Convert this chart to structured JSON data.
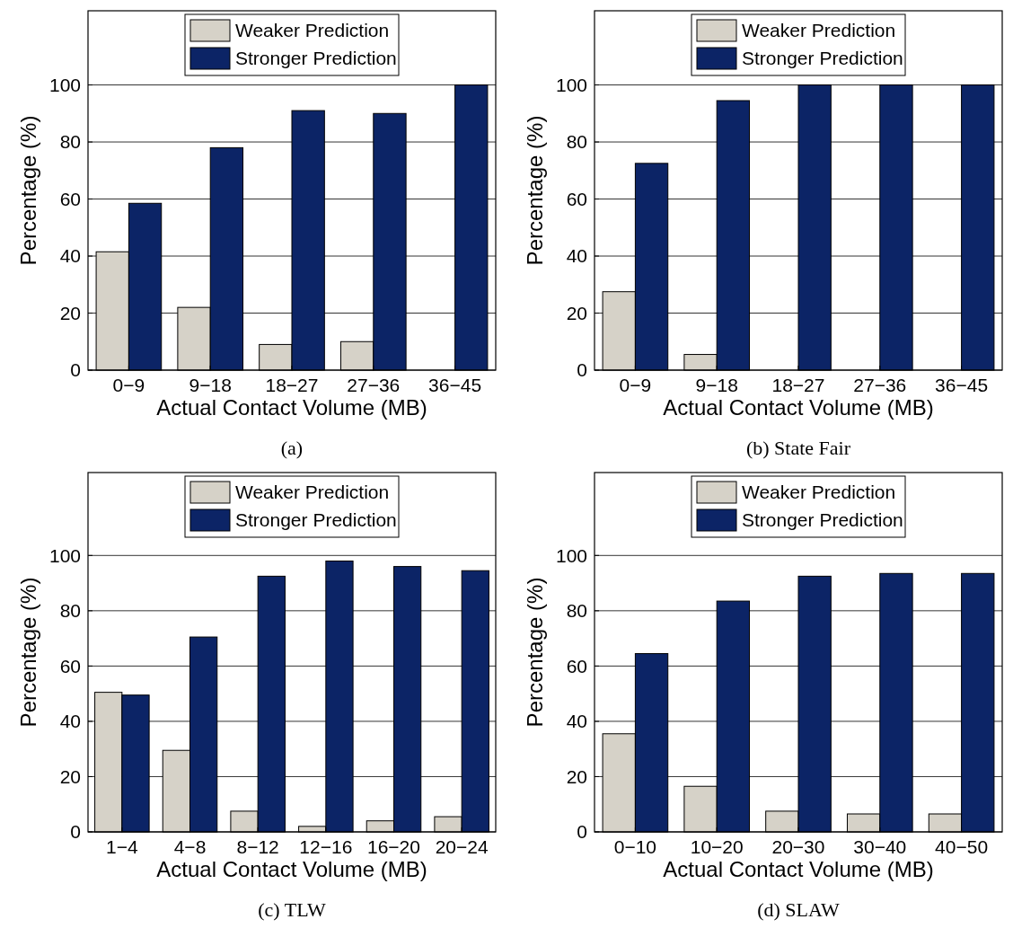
{
  "chart_data": [
    {
      "type": "bar",
      "title": "(a)",
      "xlabel": "Actual Contact Volume (MB)",
      "ylabel": "Percentage (%)",
      "categories": [
        "0−9",
        "9−18",
        "18−27",
        "27−36",
        "36−45"
      ],
      "series": [
        {
          "name": "Weaker Prediction",
          "color": "#d6d2c8",
          "values": [
            41.5,
            22,
            9,
            10,
            0
          ]
        },
        {
          "name": "Stronger Prediction",
          "color": "#0c2466",
          "values": [
            58.5,
            78,
            91,
            90,
            100
          ]
        }
      ],
      "ylim": [
        0,
        126
      ],
      "yticks": [
        0,
        20,
        40,
        60,
        80,
        100
      ],
      "grid": "y",
      "legend": "top"
    },
    {
      "type": "bar",
      "title": "(b) State Fair",
      "xlabel": "Actual Contact Volume (MB)",
      "ylabel": "Percentage (%)",
      "categories": [
        "0−9",
        "9−18",
        "18−27",
        "27−36",
        "36−45"
      ],
      "series": [
        {
          "name": "Weaker Prediction",
          "color": "#d6d2c8",
          "values": [
            27.5,
            5.5,
            0,
            0,
            0
          ]
        },
        {
          "name": "Stronger Prediction",
          "color": "#0c2466",
          "values": [
            72.5,
            94.5,
            100,
            100,
            100
          ]
        }
      ],
      "ylim": [
        0,
        126
      ],
      "yticks": [
        0,
        20,
        40,
        60,
        80,
        100
      ],
      "grid": "y",
      "legend": "top"
    },
    {
      "type": "bar",
      "title": "(c) TLW",
      "xlabel": "Actual Contact Volume (MB)",
      "ylabel": "Percentage (%)",
      "categories": [
        "1−4",
        "4−8",
        "8−12",
        "12−16",
        "16−20",
        "20−24"
      ],
      "series": [
        {
          "name": "Weaker Prediction",
          "color": "#d6d2c8",
          "values": [
            50.5,
            29.5,
            7.5,
            2,
            4,
            5.5
          ]
        },
        {
          "name": "Stronger Prediction",
          "color": "#0c2466",
          "values": [
            49.5,
            70.5,
            92.5,
            98,
            96,
            94.5
          ]
        }
      ],
      "ylim": [
        0,
        130
      ],
      "yticks": [
        0,
        20,
        40,
        60,
        80,
        100
      ],
      "grid": "y",
      "legend": "top"
    },
    {
      "type": "bar",
      "title": "(d) SLAW",
      "xlabel": "Actual Contact Volume (MB)",
      "ylabel": "Percentage (%)",
      "categories": [
        "0−10",
        "10−20",
        "20−30",
        "30−40",
        "40−50"
      ],
      "series": [
        {
          "name": "Weaker Prediction",
          "color": "#d6d2c8",
          "values": [
            35.5,
            16.5,
            7.5,
            6.5,
            6.5
          ]
        },
        {
          "name": "Stronger Prediction",
          "color": "#0c2466",
          "values": [
            64.5,
            83.5,
            92.5,
            93.5,
            93.5
          ]
        }
      ],
      "ylim": [
        0,
        130
      ],
      "yticks": [
        0,
        20,
        40,
        60,
        80,
        100
      ],
      "grid": "y",
      "legend": "top"
    }
  ]
}
